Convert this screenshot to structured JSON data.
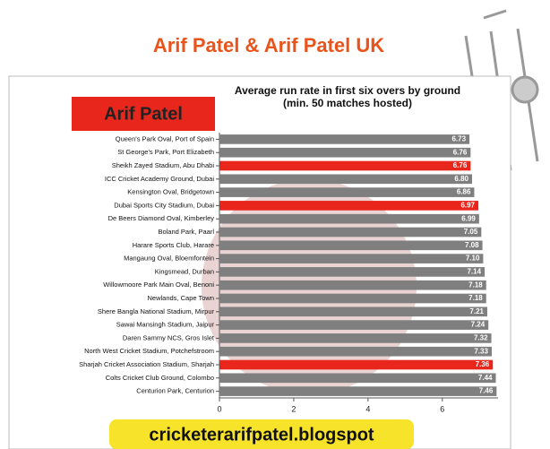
{
  "header": {
    "title": "Arif Patel & Arif Patel UK",
    "badge": "Arif Patel",
    "footer": "cricketerarifpatel.blogspot"
  },
  "chart_data": {
    "type": "barh",
    "title": "Average run rate in first six overs by ground (min. 50 matches hosted)",
    "categories": [
      "Queen's Park Oval, Port of Spain",
      "St George's Park, Port Elizabeth",
      "Sheikh Zayed Stadium, Abu Dhabi",
      "ICC Cricket Academy Ground, Dubai",
      "Kensington Oval, Bridgetown",
      "Dubai Sports City Stadium, Dubai",
      "De Beers Diamond Oval, Kimberley",
      "Boland Park, Paarl",
      "Harare Sports Club, Harare",
      "Mangaung Oval, Bloemfontein",
      "Kingsmead, Durban",
      "Willowmoore Park Main Oval, Benoni",
      "Newlands, Cape Town",
      "Shere Bangla National Stadium, Mirpur",
      "Sawai Mansingh Stadium, Jaipur",
      "Daren Sammy NCS, Gros Islet",
      "North West Cricket Stadium, Potchefstroom",
      "Sharjah Cricket Association Stadium, Sharjah",
      "Colts Cricket Club Ground, Colombo",
      "Centurion Park, Centurion"
    ],
    "values": [
      6.73,
      6.76,
      6.76,
      6.8,
      6.86,
      6.97,
      6.99,
      7.05,
      7.08,
      7.1,
      7.14,
      7.18,
      7.18,
      7.21,
      7.24,
      7.32,
      7.33,
      7.36,
      7.44,
      7.46
    ],
    "value_labels": [
      "6.73",
      "6.76",
      "6.76",
      "6.80",
      "6.86",
      "6.97",
      "6.99",
      "7.05",
      "7.08",
      "7.10",
      "7.14",
      "7.18",
      "7.18",
      "7.21",
      "7.24",
      "7.32",
      "7.33",
      "7.36",
      "7.44",
      "7.46"
    ],
    "colors": [
      "#7f7f7f",
      "#7f7f7f",
      "#e8261c",
      "#7f7f7f",
      "#7f7f7f",
      "#e8261c",
      "#7f7f7f",
      "#7f7f7f",
      "#7f7f7f",
      "#7f7f7f",
      "#7f7f7f",
      "#7f7f7f",
      "#7f7f7f",
      "#7f7f7f",
      "#7f7f7f",
      "#7f7f7f",
      "#7f7f7f",
      "#e8261c",
      "#7f7f7f",
      "#7f7f7f"
    ],
    "xlim": [
      0,
      7.5
    ],
    "xticks": [
      0,
      2,
      4,
      6
    ]
  }
}
